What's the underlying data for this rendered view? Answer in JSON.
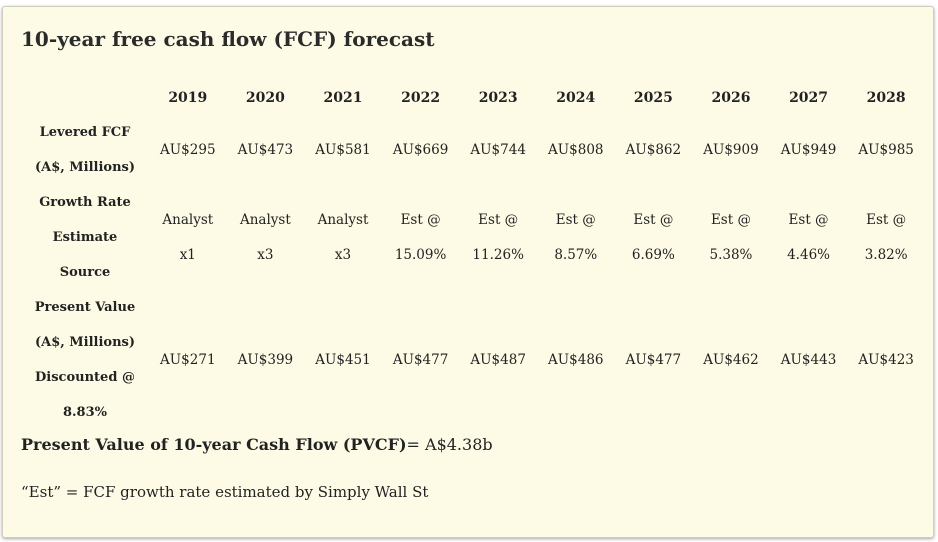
{
  "title": "10-year free cash flow (FCF) forecast",
  "years": [
    "2019",
    "2020",
    "2021",
    "2022",
    "2023",
    "2024",
    "2025",
    "2026",
    "2027",
    "2028"
  ],
  "rows": {
    "levered_fcf": {
      "label_line1": "Levered FCF",
      "label_line2": "(A$, Millions)",
      "values": [
        "AU$295",
        "AU$473",
        "AU$581",
        "AU$669",
        "AU$744",
        "AU$808",
        "AU$862",
        "AU$909",
        "AU$949",
        "AU$985"
      ]
    },
    "growth_source": {
      "label_line1": "Growth Rate",
      "label_line2": "Estimate",
      "label_line3": "Source",
      "line1": [
        "Analyst",
        "Analyst",
        "Analyst",
        "Est @",
        "Est @",
        "Est @",
        "Est @",
        "Est @",
        "Est @",
        "Est @"
      ],
      "line2": [
        "x1",
        "x3",
        "x3",
        "15.09%",
        "11.26%",
        "8.57%",
        "6.69%",
        "5.38%",
        "4.46%",
        "3.82%"
      ]
    },
    "present_value": {
      "label_line1": "Present Value",
      "label_line2": "(A$, Millions)",
      "label_line3": "Discounted @",
      "label_line4": "8.83%",
      "values": [
        "AU$271",
        "AU$399",
        "AU$451",
        "AU$477",
        "AU$487",
        "AU$486",
        "AU$477",
        "AU$462",
        "AU$443",
        "AU$423"
      ]
    }
  },
  "summary": {
    "label": "Present Value of 10-year Cash Flow (PVCF)",
    "value": "= A$4.38b"
  },
  "note": "“Est” = FCF growth rate estimated by Simply Wall St"
}
